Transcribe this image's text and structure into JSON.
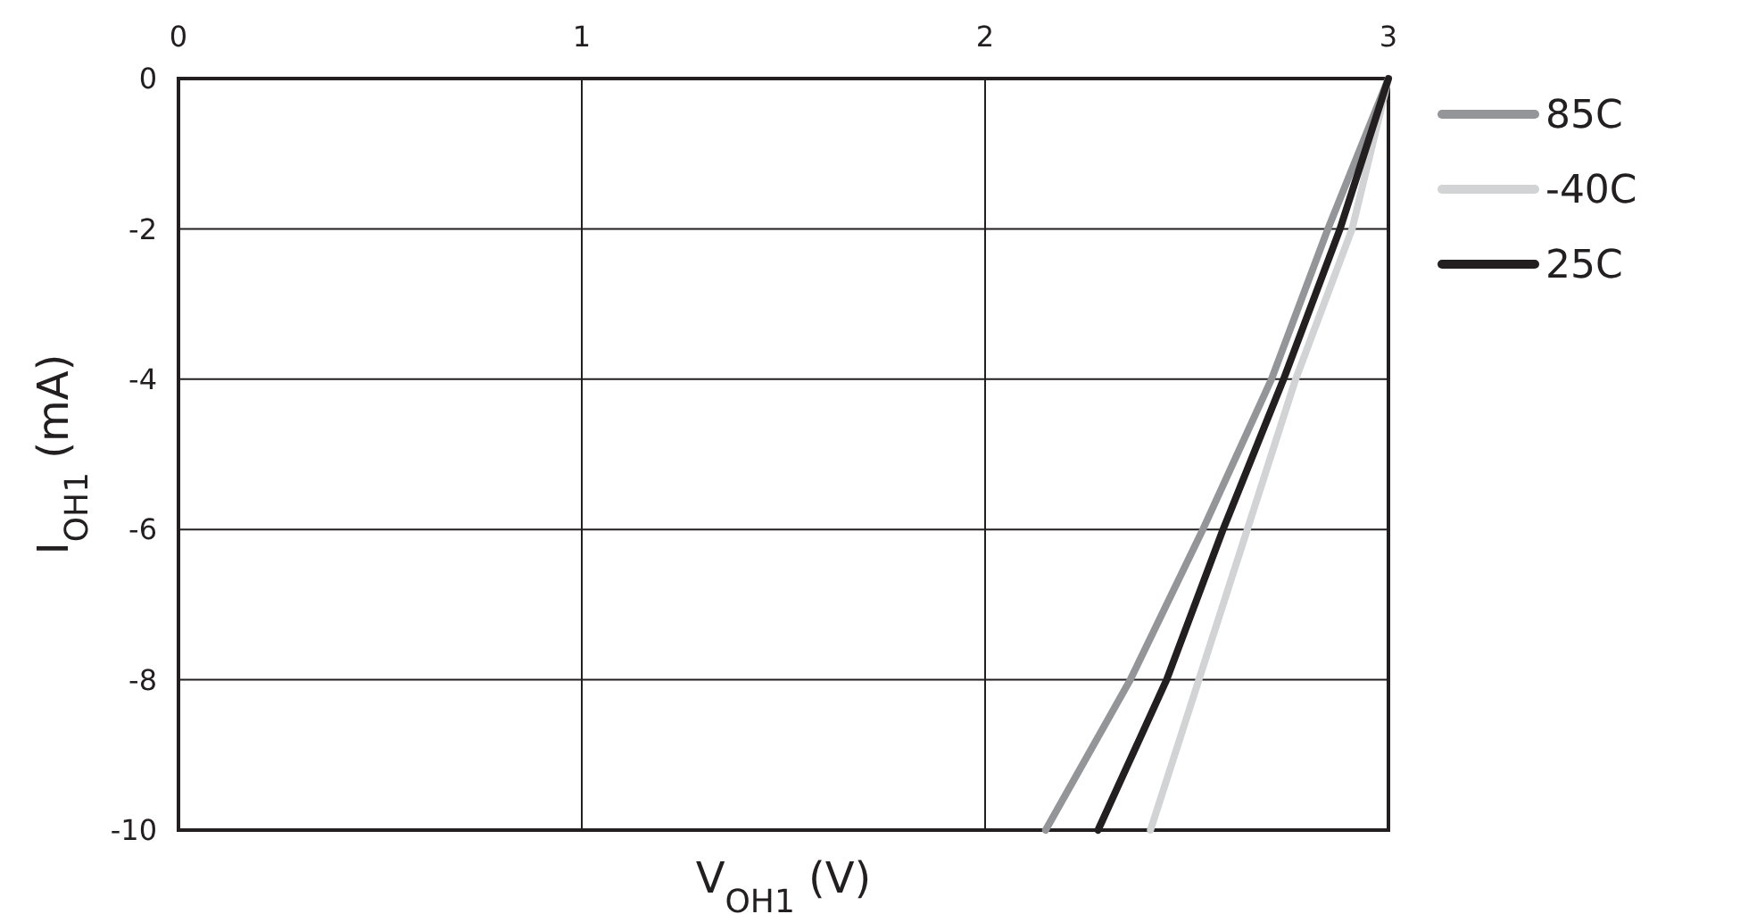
{
  "chart_data": {
    "type": "line",
    "xlabel": "V$_{OH1}$ (V)",
    "ylabel": "I$_{OH1}$ (mA)",
    "xlim": [
      0,
      3
    ],
    "xticks": [
      0,
      1,
      2,
      3
    ],
    "ylim": [
      -10,
      0
    ],
    "yticks": [
      0,
      -2,
      -4,
      -6,
      -8,
      -10
    ],
    "grid": true,
    "legend": "right",
    "marker": "none",
    "line_style": "solid",
    "series": [
      {
        "name": "85C",
        "color": "#939598",
        "x": [
          3,
          2.85,
          2.71,
          2.54,
          2.36,
          2.15
        ],
        "values": [
          0,
          -2,
          -4,
          -6,
          -8,
          -10
        ]
      },
      {
        "name": "-40C",
        "color": "#d1d3d4",
        "x": [
          3,
          2.91,
          2.77,
          2.65,
          2.53,
          2.41
        ],
        "values": [
          0,
          -2,
          -4,
          -6,
          -8,
          -10
        ]
      },
      {
        "name": "25C",
        "color": "#231f20",
        "x": [
          3,
          2.88,
          2.74,
          2.59,
          2.45,
          2.28
        ],
        "values": [
          0,
          -2,
          -4,
          -6,
          -8,
          -10
        ]
      }
    ]
  }
}
